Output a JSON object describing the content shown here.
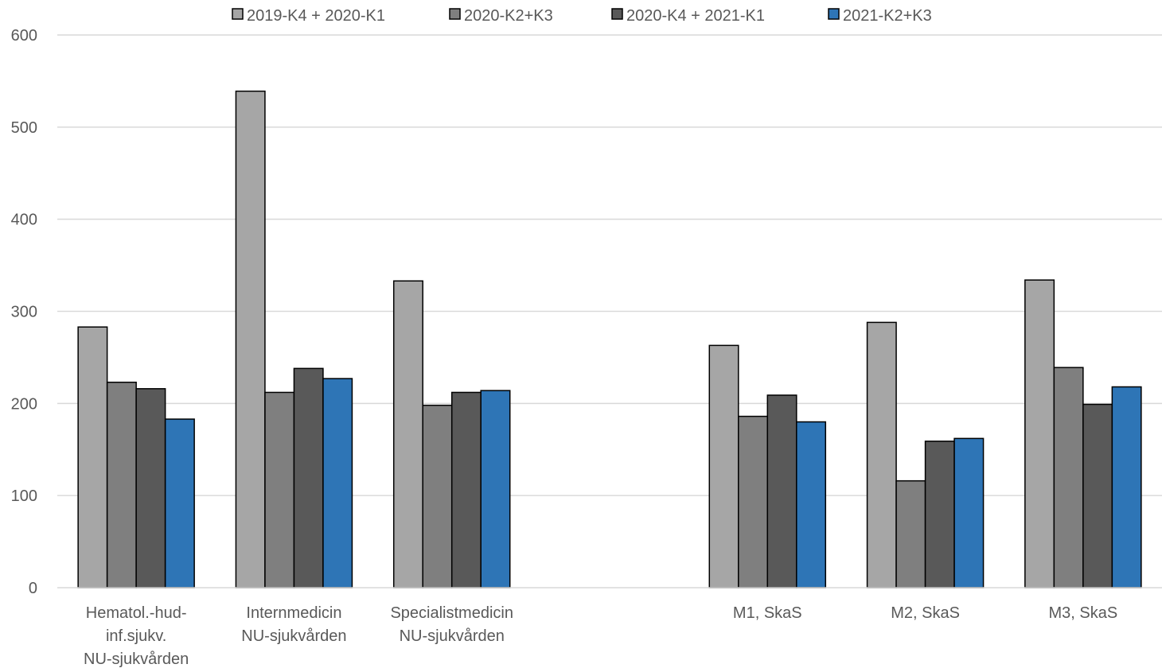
{
  "chart_data": {
    "type": "bar",
    "title": "",
    "xlabel": "",
    "ylabel": "",
    "ylim": [
      0,
      600
    ],
    "yticks": [
      0,
      100,
      200,
      300,
      400,
      500,
      600
    ],
    "grid": true,
    "legend_position": "top",
    "categories": [
      [
        "Hematol.-hud-",
        "inf.sjukv.",
        "NU-sjukvården"
      ],
      [
        "Internmedicin",
        "NU-sjukvården"
      ],
      [
        "Specialistmedicin",
        "NU-sjukvården"
      ],
      [],
      [
        "M1, SkaS"
      ],
      [
        "M2, SkaS"
      ],
      [
        "M3, SkaS"
      ]
    ],
    "series": [
      {
        "name": "2019-K4 + 2020-K1",
        "color": "#a6a6a6",
        "values": [
          283,
          539,
          333,
          null,
          263,
          288,
          334
        ]
      },
      {
        "name": "2020-K2+K3",
        "color": "#7f7f7f",
        "values": [
          223,
          212,
          198,
          null,
          186,
          116,
          239
        ]
      },
      {
        "name": "2020-K4 + 2021-K1",
        "color": "#595959",
        "values": [
          216,
          238,
          212,
          null,
          209,
          159,
          199
        ]
      },
      {
        "name": "2021-K2+K3",
        "color": "#2e75b6",
        "values": [
          183,
          227,
          214,
          null,
          180,
          162,
          218
        ]
      }
    ]
  }
}
